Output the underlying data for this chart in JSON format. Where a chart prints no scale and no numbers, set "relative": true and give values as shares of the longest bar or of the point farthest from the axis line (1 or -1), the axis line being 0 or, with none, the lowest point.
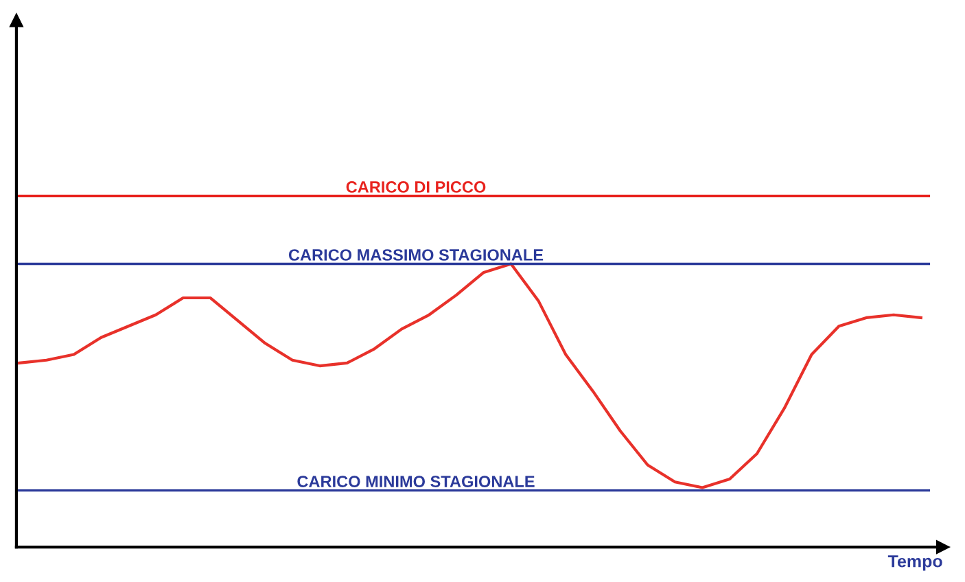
{
  "chart_data": {
    "type": "line",
    "relative": true,
    "xlabel": "Tempo",
    "categories": [
      null,
      null,
      null,
      null,
      null,
      null,
      null,
      null,
      null,
      null,
      null,
      null,
      null,
      null,
      null,
      null,
      null,
      null,
      null,
      null,
      null,
      null,
      null,
      null,
      null,
      null,
      null,
      null,
      null,
      null,
      null,
      null,
      null,
      null
    ],
    "series": [
      {
        "color": "#e8312a",
        "values": [
          0.65,
          0.66,
          0.68,
          0.74,
          0.78,
          0.82,
          0.88,
          0.88,
          0.8,
          0.72,
          0.66,
          0.64,
          0.65,
          0.7,
          0.77,
          0.82,
          0.89,
          0.97,
          1,
          0.87,
          0.68,
          0.55,
          0.41,
          0.29,
          0.23,
          0.21,
          0.24,
          0.33,
          0.49,
          0.68,
          0.78,
          0.81,
          0.82,
          0.81
        ]
      }
    ],
    "ref_lines": [
      {
        "axis": "y",
        "value": 1.24,
        "label": "CARICO DI PICCO",
        "color": "#e8231e"
      },
      {
        "axis": "y",
        "value": 1.0,
        "label": "CARICO MASSIMO STAGIONALE",
        "color": "#2b3a9a"
      },
      {
        "axis": "y",
        "value": 0.2,
        "label": "CARICO MINIMO STAGIONALE",
        "color": "#2b3a9a"
      }
    ],
    "legend": false,
    "marker": "none",
    "line_style": "solid"
  }
}
